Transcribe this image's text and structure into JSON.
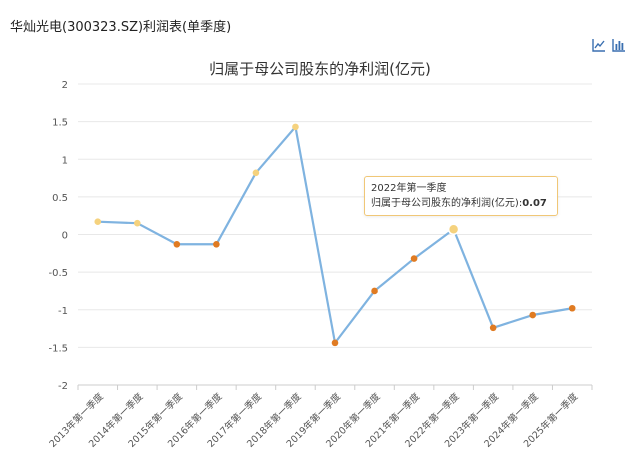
{
  "header": {
    "title": "华灿光电(300323.SZ)利润表(单季度)"
  },
  "toolbar": {
    "line_icon": "line-chart-icon",
    "bar_icon": "bar-chart-icon"
  },
  "tooltip": {
    "label": "2022年第一季度",
    "series": "归属于母公司股东的净利润(亿元)",
    "value": "0.07"
  },
  "colors": {
    "line": "#7fb3e0",
    "point_positive": "#f5d27e",
    "point_negative": "#e07b22",
    "grid": "#e8e8e8"
  },
  "chart_data": {
    "type": "line",
    "title": "归属于母公司股东的净利润(亿元)",
    "xlabel": "",
    "ylabel": "",
    "categories": [
      "2013年第一季度",
      "2014年第一季度",
      "2015年第一季度",
      "2016年第一季度",
      "2017年第一季度",
      "2018年第一季度",
      "2019年第一季度",
      "2020年第一季度",
      "2021年第一季度",
      "2022年第一季度",
      "2023年第一季度",
      "2024年第一季度",
      "2025年第一季度"
    ],
    "values": [
      0.17,
      0.15,
      -0.13,
      -0.13,
      0.82,
      1.43,
      -1.44,
      -0.75,
      -0.32,
      0.07,
      -1.24,
      -1.07,
      -0.98
    ],
    "ylim": [
      -2,
      2
    ],
    "yticks": [
      "2",
      "1.5",
      "1",
      "0.5",
      "0",
      "-0.5",
      "-1",
      "-1.5",
      "-2"
    ],
    "grid": true,
    "legend": "none",
    "highlighted_index": 9
  }
}
